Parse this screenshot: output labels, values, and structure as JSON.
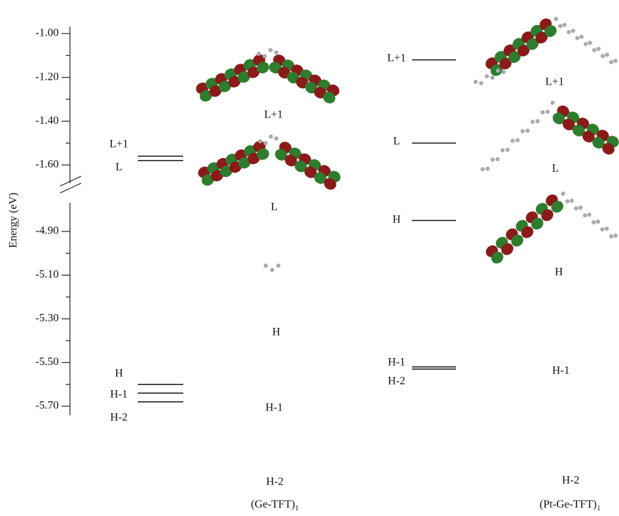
{
  "chart_data": {
    "type": "energy-level",
    "ylabel": "Energy (eV)",
    "segments": [
      {
        "ylim": [
          -0.97,
          -1.68
        ],
        "yticks": [
          {
            "value": -1.0,
            "label": "-1.00"
          },
          {
            "value": -1.2,
            "label": "-1.20"
          },
          {
            "value": -1.4,
            "label": "-1.40"
          },
          {
            "value": -1.6,
            "label": "-1.60"
          }
        ],
        "minor_yticks": [
          -1.1,
          -1.3,
          -1.5
        ]
      },
      {
        "ylim": [
          -4.78,
          -5.74
        ],
        "yticks": [
          {
            "value": -4.9,
            "label": "-4.90"
          },
          {
            "value": -5.1,
            "label": "-5.10"
          },
          {
            "value": -5.3,
            "label": "-5.30"
          },
          {
            "value": -5.5,
            "label": "-5.50"
          },
          {
            "value": -5.7,
            "label": "-5.70"
          }
        ],
        "minor_yticks": [
          -5.0,
          -5.2,
          -5.4,
          -5.6
        ]
      }
    ],
    "groups": [
      {
        "name": "(Ge-TFT)",
        "subscript": "1",
        "levels": [
          {
            "label": "L+1",
            "value": -1.56
          },
          {
            "label": "L",
            "value": -1.58
          },
          {
            "label": "H",
            "value": -5.6
          },
          {
            "label": "H-1",
            "value": -5.64
          },
          {
            "label": "H-2",
            "value": -5.68
          }
        ],
        "orbital_captions": [
          "L+1",
          "L",
          "H",
          "H-1",
          "H-2"
        ]
      },
      {
        "name": "(Pt-Ge-TFT)",
        "subscript": "1",
        "levels": [
          {
            "label": "L+1",
            "value": -1.12
          },
          {
            "label": "L",
            "value": -1.5
          },
          {
            "label": "H",
            "value": -4.85
          },
          {
            "label": "H-1",
            "value": -5.52
          },
          {
            "label": "H-2",
            "value": -5.53
          }
        ],
        "orbital_captions": [
          "L+1",
          "L",
          "H",
          "H-1",
          "H-2"
        ]
      }
    ]
  }
}
